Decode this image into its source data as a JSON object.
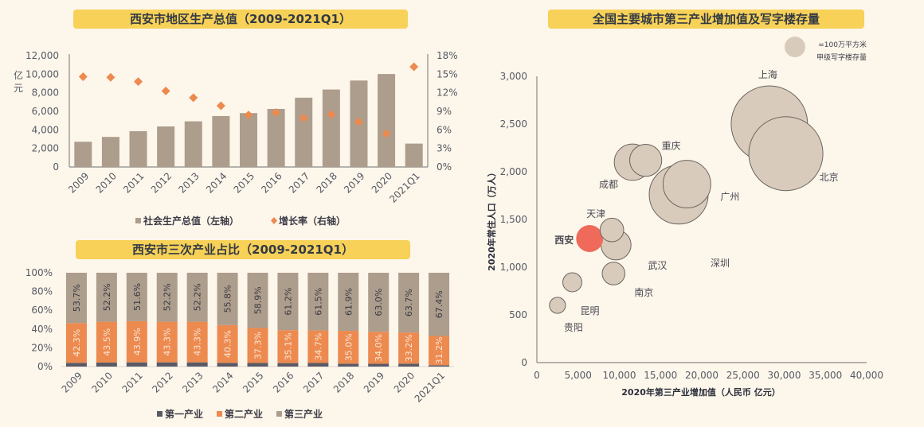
{
  "colors": {
    "background": "#fdf6eb",
    "banner": "#f7d158",
    "gdp_bar": "#ad9d8c",
    "growth_marker": "#ed8a4f",
    "primary": "#5a5a66",
    "secondary": "#ed8a4f",
    "tertiary": "#ad9d8c",
    "bubble": "#d8cbbb",
    "bubble_highlight": "#ef6a5a",
    "axis": "#8a8a8a"
  },
  "chart_data": [
    {
      "id": "gdp",
      "type": "bar",
      "title": "西安市地区生产总值（2009-2021Q1）",
      "categories": [
        "2009",
        "2010",
        "2011",
        "2012",
        "2013",
        "2014",
        "2015",
        "2016",
        "2017",
        "2018",
        "2019",
        "2020",
        "2021Q1"
      ],
      "ylabel": "亿元",
      "ylim": [
        0,
        12000
      ],
      "yticks": [
        "0",
        "2,000",
        "4,000",
        "6,000",
        "8,000",
        "10,000",
        "12,000"
      ],
      "y2lim": [
        0,
        18
      ],
      "y2ticks": [
        "0%",
        "3%",
        "6%",
        "9%",
        "12%",
        "15%",
        "18%"
      ],
      "series": [
        {
          "name": "社会生产总值（左轴）",
          "type": "bar",
          "axis": "left",
          "values": [
            2720,
            3240,
            3860,
            4370,
            4920,
            5490,
            5810,
            6260,
            7470,
            8350,
            9320,
            10020,
            2520
          ]
        },
        {
          "name": "增长率（右轴）",
          "type": "scatter",
          "marker": "diamond",
          "axis": "right",
          "values": [
            14.6,
            14.5,
            13.8,
            12.3,
            11.2,
            9.9,
            8.4,
            8.8,
            7.9,
            8.5,
            7.3,
            5.4,
            16.2
          ]
        }
      ],
      "legend": [
        "社会生产总值（左轴）",
        "增长率（右轴）"
      ],
      "legend_position": "bottom",
      "grid": false
    },
    {
      "id": "structure",
      "type": "bar",
      "stacked": true,
      "title": "西安市三次产业占比（2009-2021Q1）",
      "categories": [
        "2009",
        "2010",
        "2011",
        "2012",
        "2013",
        "2014",
        "2015",
        "2016",
        "2017",
        "2018",
        "2019",
        "2020",
        "2021Q1"
      ],
      "ylim": [
        0,
        100
      ],
      "yticks": [
        "0%",
        "20%",
        "40%",
        "60%",
        "80%",
        "100%"
      ],
      "series": [
        {
          "name": "第一产业",
          "values": [
            4.0,
            4.3,
            4.5,
            4.5,
            4.5,
            3.9,
            3.8,
            3.7,
            3.8,
            3.1,
            3.0,
            3.1,
            1.4
          ]
        },
        {
          "name": "第二产业",
          "values": [
            42.3,
            43.5,
            43.9,
            43.3,
            43.3,
            40.3,
            37.3,
            35.1,
            34.7,
            35.0,
            34.0,
            33.2,
            31.2
          ],
          "labels": [
            "42.3%",
            "43.5%",
            "43.9%",
            "43.3%",
            "43.3%",
            "40.3%",
            "37.3%",
            "35.1%",
            "34.7%",
            "35.0%",
            "34.0%",
            "33.2%",
            "31.2%"
          ]
        },
        {
          "name": "第三产业",
          "values": [
            53.7,
            52.2,
            51.6,
            52.2,
            52.2,
            55.8,
            58.9,
            61.2,
            61.5,
            61.9,
            63.0,
            63.7,
            67.4
          ],
          "labels": [
            "53.7%",
            "52.2%",
            "51.6%",
            "52.2%",
            "52.2%",
            "55.8%",
            "58.9%",
            "61.2%",
            "61.5%",
            "61.9%",
            "63.0%",
            "63.7%",
            "67.4%"
          ]
        }
      ],
      "legend": [
        "第一产业",
        "第二产业",
        "第三产业"
      ],
      "legend_position": "bottom",
      "grid": false
    },
    {
      "id": "bubble",
      "type": "scatter",
      "subtype": "bubble",
      "title": "全国主要城市第三产业增加值及写字楼存量",
      "xlabel": "2020年第三产业增加值（人民币 亿元）",
      "ylabel": "2020年常住人口（万人）",
      "xlim": [
        0,
        40000
      ],
      "ylim": [
        0,
        3000
      ],
      "xticks": [
        "0",
        "5,000",
        "10,000",
        "15,000",
        "20,000",
        "25,000",
        "30,000",
        "35,000",
        "40,000"
      ],
      "yticks": [
        "0",
        "500",
        "1,000",
        "1,500",
        "2,000",
        "2,500",
        "3,000"
      ],
      "size_legend": {
        "line1": "=100万平方米",
        "line2": "甲级写字楼存量",
        "value": 1
      },
      "size_unit": "100万平方米",
      "points": [
        {
          "city": "上海",
          "x": 28200,
          "y": 2500,
          "size": 13.6
        },
        {
          "city": "北京",
          "x": 30200,
          "y": 2190,
          "size": 12.8
        },
        {
          "city": "深圳",
          "x": 17200,
          "y": 1760,
          "size": 8.1
        },
        {
          "city": "广州",
          "x": 18200,
          "y": 1870,
          "size": 5.3
        },
        {
          "city": "成都",
          "x": 11600,
          "y": 2100,
          "size": 3.1
        },
        {
          "city": "重庆",
          "x": 13200,
          "y": 2120,
          "size": 2.4
        },
        {
          "city": "武汉",
          "x": 9600,
          "y": 1233,
          "size": 2.1
        },
        {
          "city": "西安",
          "x": 6400,
          "y": 1300,
          "size": 1.7,
          "highlight": true
        },
        {
          "city": "天津",
          "x": 9100,
          "y": 1390,
          "size": 1.3
        },
        {
          "city": "南京",
          "x": 9300,
          "y": 933,
          "size": 1.2
        },
        {
          "city": "昆明",
          "x": 4300,
          "y": 842,
          "size": 0.85
        },
        {
          "city": "贵阳",
          "x": 2500,
          "y": 600,
          "size": 0.6
        }
      ],
      "grid": false
    }
  ]
}
